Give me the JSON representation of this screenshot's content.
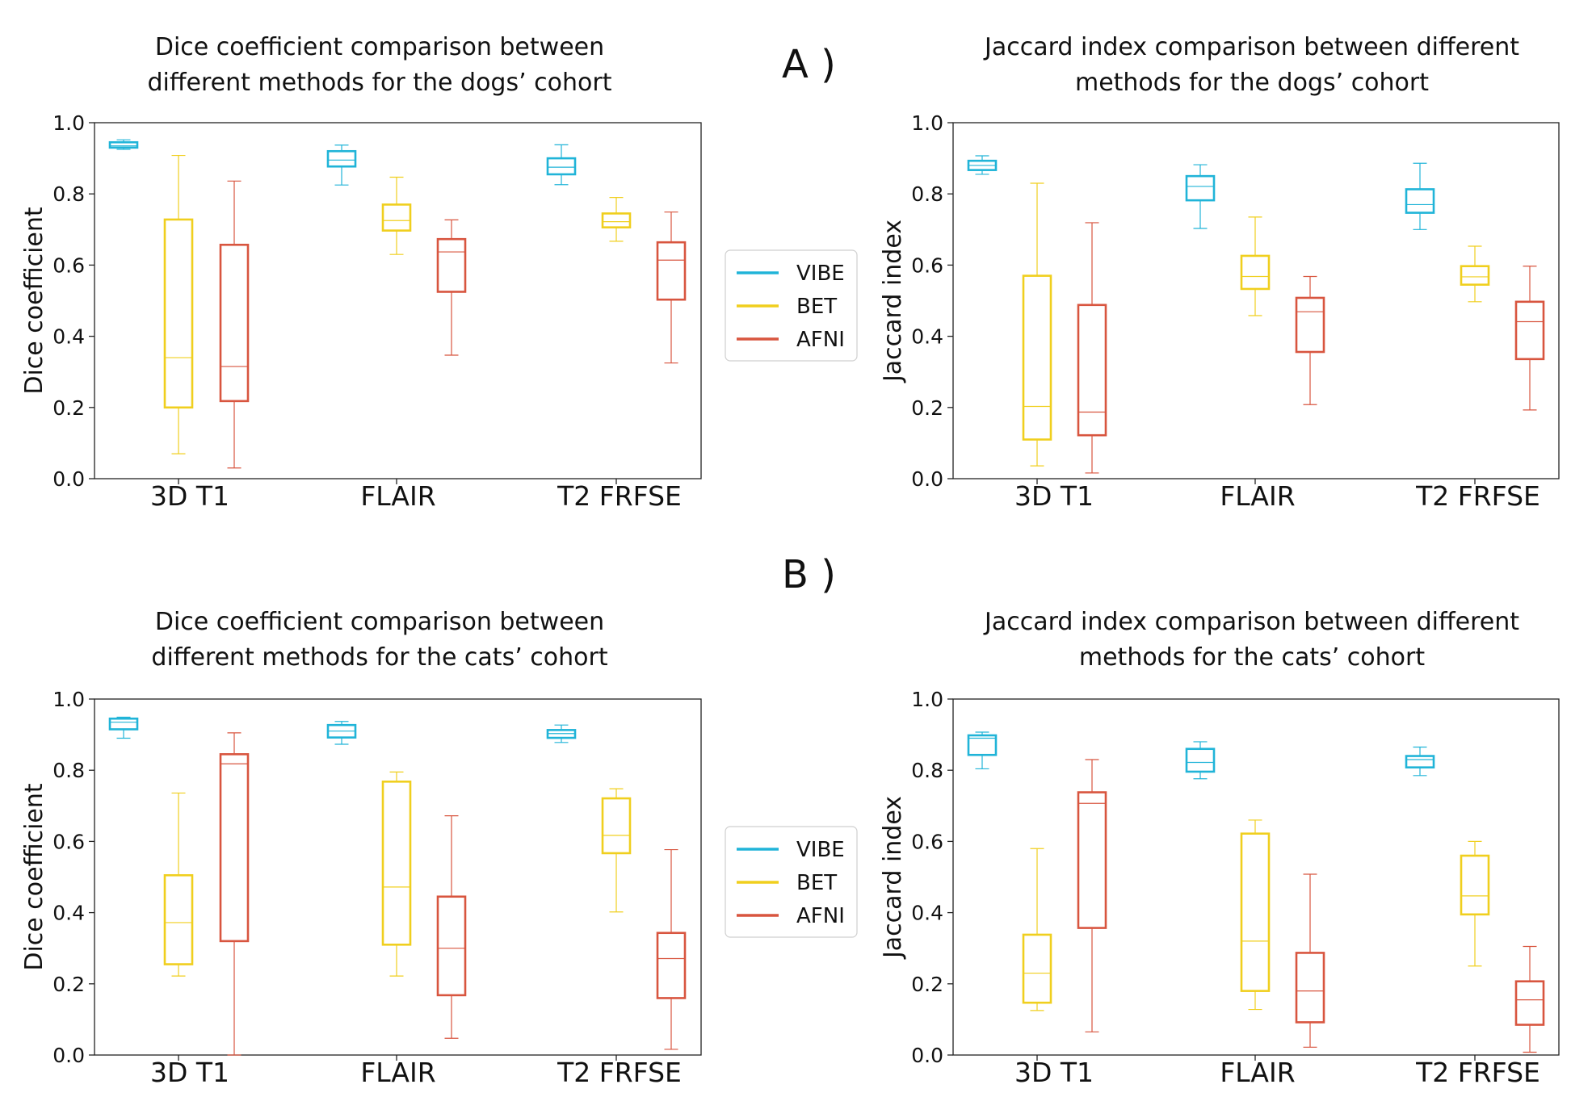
{
  "colors": {
    "VIBE": "#20b4d8",
    "BET": "#f0cf1e",
    "AFNI": "#d8553f"
  },
  "panels": {
    "A": "A )",
    "B": "B )"
  },
  "legend": {
    "entries": [
      "VIBE",
      "BET",
      "AFNI"
    ]
  },
  "chart_data": [
    {
      "type": "box",
      "title": [
        "Dice coefficient comparison between",
        "different methods for the dogs’ cohort"
      ],
      "ylabel": "Dice coefficient",
      "ylim": [
        0,
        1
      ],
      "yticks": [
        "0.0",
        "0.2",
        "0.4",
        "0.6",
        "0.8",
        "1.0"
      ],
      "categories": [
        "3D T1",
        "FLAIR",
        "T2 FRFSE"
      ],
      "series": [
        {
          "name": "VIBE",
          "boxes": [
            [
              0.925,
              0.93,
              0.935,
              0.945,
              0.952
            ],
            [
              0.825,
              0.877,
              0.895,
              0.92,
              0.937
            ],
            [
              0.826,
              0.855,
              0.875,
              0.9,
              0.938
            ]
          ]
        },
        {
          "name": "BET",
          "boxes": [
            [
              0.07,
              0.2,
              0.34,
              0.728,
              0.908
            ],
            [
              0.63,
              0.697,
              0.725,
              0.77,
              0.847
            ],
            [
              0.667,
              0.706,
              0.722,
              0.745,
              0.79
            ]
          ]
        },
        {
          "name": "AFNI",
          "boxes": [
            [
              0.03,
              0.218,
              0.315,
              0.657,
              0.836
            ],
            [
              0.347,
              0.525,
              0.637,
              0.673,
              0.727
            ],
            [
              0.325,
              0.503,
              0.614,
              0.664,
              0.749
            ]
          ]
        }
      ]
    },
    {
      "type": "box",
      "title": [
        "Jaccard index comparison between different",
        "methods for the dogs’ cohort"
      ],
      "ylabel": "Jaccard index",
      "ylim": [
        0,
        1
      ],
      "yticks": [
        "0.0",
        "0.2",
        "0.4",
        "0.6",
        "0.8",
        "1.0"
      ],
      "categories": [
        "3D T1",
        "FLAIR",
        "T2 FRFSE"
      ],
      "series": [
        {
          "name": "VIBE",
          "boxes": [
            [
              0.855,
              0.867,
              0.88,
              0.893,
              0.907
            ],
            [
              0.703,
              0.782,
              0.821,
              0.85,
              0.882
            ],
            [
              0.7,
              0.747,
              0.77,
              0.813,
              0.886
            ]
          ]
        },
        {
          "name": "BET",
          "boxes": [
            [
              0.036,
              0.11,
              0.203,
              0.57,
              0.83
            ],
            [
              0.458,
              0.533,
              0.568,
              0.626,
              0.735
            ],
            [
              0.497,
              0.545,
              0.567,
              0.597,
              0.653
            ]
          ]
        },
        {
          "name": "AFNI",
          "boxes": [
            [
              0.016,
              0.122,
              0.187,
              0.488,
              0.719
            ],
            [
              0.208,
              0.356,
              0.469,
              0.508,
              0.568
            ],
            [
              0.193,
              0.336,
              0.441,
              0.497,
              0.597
            ]
          ]
        }
      ]
    },
    {
      "type": "box",
      "title": [
        "Dice coefficient comparison between",
        "different methods for the cats’ cohort"
      ],
      "ylabel": "Dice coefficient",
      "ylim": [
        0,
        1
      ],
      "yticks": [
        "0.0",
        "0.2",
        "0.4",
        "0.6",
        "0.8",
        "1.0"
      ],
      "categories": [
        "3D T1",
        "FLAIR",
        "T2 FRFSE"
      ],
      "series": [
        {
          "name": "VIBE",
          "boxes": [
            [
              0.89,
              0.915,
              0.935,
              0.945,
              0.949
            ],
            [
              0.873,
              0.892,
              0.91,
              0.927,
              0.937
            ],
            [
              0.878,
              0.891,
              0.903,
              0.913,
              0.927
            ]
          ]
        },
        {
          "name": "BET",
          "boxes": [
            [
              0.222,
              0.255,
              0.372,
              0.505,
              0.736
            ],
            [
              0.222,
              0.31,
              0.472,
              0.768,
              0.795
            ],
            [
              0.402,
              0.567,
              0.617,
              0.721,
              0.748
            ]
          ]
        },
        {
          "name": "AFNI",
          "boxes": [
            [
              0.0,
              0.32,
              0.818,
              0.845,
              0.905
            ],
            [
              0.047,
              0.168,
              0.3,
              0.445,
              0.672
            ],
            [
              0.016,
              0.16,
              0.271,
              0.343,
              0.577
            ]
          ]
        }
      ]
    },
    {
      "type": "box",
      "title": [
        "Jaccard index comparison between different",
        "methods for the cats’ cohort"
      ],
      "ylabel": "Jaccard index",
      "ylim": [
        0,
        1
      ],
      "yticks": [
        "0.0",
        "0.2",
        "0.4",
        "0.6",
        "0.8",
        "1.0"
      ],
      "categories": [
        "3D T1",
        "FLAIR",
        "T2 FRFSE"
      ],
      "series": [
        {
          "name": "VIBE",
          "boxes": [
            [
              0.804,
              0.843,
              0.89,
              0.898,
              0.907
            ],
            [
              0.776,
              0.796,
              0.822,
              0.86,
              0.88
            ],
            [
              0.785,
              0.808,
              0.83,
              0.84,
              0.865
            ]
          ]
        },
        {
          "name": "BET",
          "boxes": [
            [
              0.125,
              0.147,
              0.23,
              0.338,
              0.58
            ],
            [
              0.128,
              0.18,
              0.32,
              0.622,
              0.66
            ],
            [
              0.25,
              0.395,
              0.447,
              0.56,
              0.6
            ]
          ]
        },
        {
          "name": "AFNI",
          "boxes": [
            [
              0.065,
              0.357,
              0.707,
              0.738,
              0.83
            ],
            [
              0.022,
              0.092,
              0.18,
              0.287,
              0.508
            ],
            [
              0.008,
              0.085,
              0.155,
              0.207,
              0.305
            ]
          ]
        }
      ]
    }
  ]
}
